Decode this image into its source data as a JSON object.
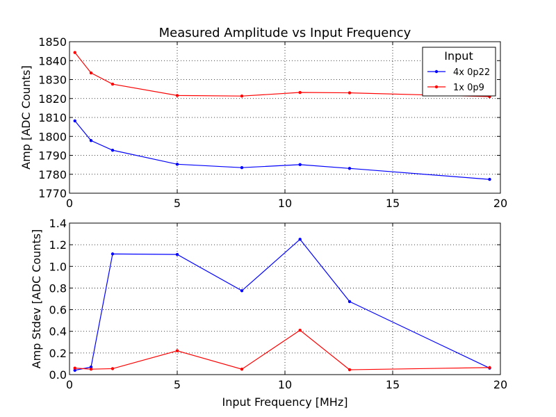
{
  "chart_data": [
    {
      "type": "line",
      "title": "Measured Amplitude vs Input Frequency",
      "xlabel": "",
      "ylabel": "Amp [ADC Counts]",
      "xlim": [
        0,
        20
      ],
      "ylim": [
        1770,
        1850
      ],
      "xticks": [
        "0",
        "5",
        "10",
        "15",
        "20"
      ],
      "yticks": [
        "1770",
        "1780",
        "1790",
        "1800",
        "1810",
        "1820",
        "1830",
        "1840",
        "1850"
      ],
      "grid": true,
      "legend": {
        "title": "Input",
        "location": "top-right"
      },
      "x": [
        0.25,
        1,
        2,
        5,
        8,
        10.7,
        13,
        19.5
      ],
      "series": [
        {
          "name": "4x 0p22",
          "color": "#0000ff",
          "values": [
            1808.2,
            1797.8,
            1792.7,
            1785.3,
            1783.5,
            1785.1,
            1783.1,
            1777.3
          ]
        },
        {
          "name": "1x 0p9",
          "color": "#ff0000",
          "values": [
            1844.3,
            1833.5,
            1827.6,
            1821.6,
            1821.3,
            1823.2,
            1823.0,
            1821.0
          ]
        }
      ]
    },
    {
      "type": "line",
      "title": "",
      "xlabel": "Input Frequency [MHz]",
      "ylabel": "Amp Stdev [ADC Counts]",
      "xlim": [
        0,
        20
      ],
      "ylim": [
        0,
        1.4
      ],
      "xticks": [
        "0",
        "5",
        "10",
        "15",
        "20"
      ],
      "yticks": [
        "0.0",
        "0.2",
        "0.4",
        "0.6",
        "0.8",
        "1.0",
        "1.2",
        "1.4"
      ],
      "grid": true,
      "x": [
        0.25,
        1,
        2,
        5,
        8,
        10.7,
        13,
        19.5
      ],
      "series": [
        {
          "name": "4x 0p22",
          "color": "#0000ff",
          "values": [
            0.04,
            0.07,
            1.115,
            1.11,
            0.775,
            1.25,
            0.675,
            0.06
          ]
        },
        {
          "name": "1x 0p9",
          "color": "#ff0000",
          "values": [
            0.06,
            0.05,
            0.055,
            0.22,
            0.05,
            0.41,
            0.045,
            0.065
          ]
        }
      ]
    }
  ]
}
